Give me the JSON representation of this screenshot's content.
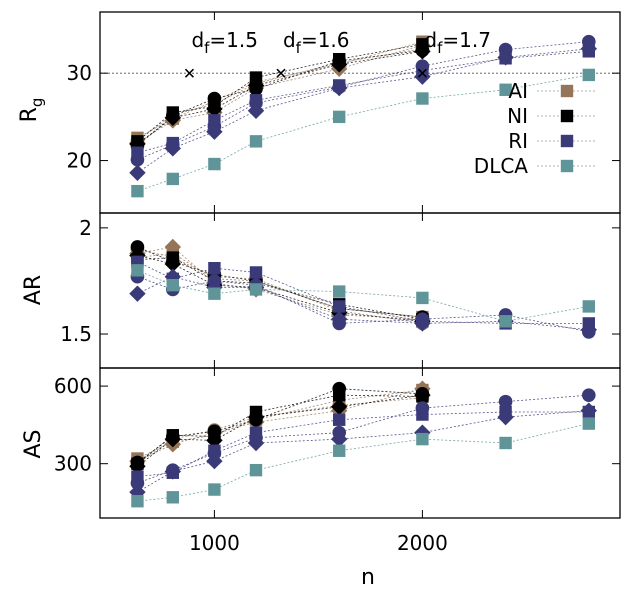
{
  "chart_data": {
    "type": "scatter",
    "xlabel": "n",
    "xticks": [
      1000,
      2000
    ],
    "xlim": [
      450,
      2950
    ],
    "colors": {
      "AI": "#957558",
      "NI": "#000000",
      "RI": "#3a3a78",
      "DLCA": "#5f9598"
    },
    "legend_position": "top-right",
    "panels": [
      {
        "ylabel_main": "R",
        "ylabel_sub": "g",
        "yticks": [
          20,
          30
        ],
        "ylim": [
          14,
          37
        ],
        "reference_y": 30,
        "annotations": [
          {
            "x": 880,
            "y": 30,
            "label_main": "d",
            "label_sub": "f",
            "label_value": "=1.5"
          },
          {
            "x": 1320,
            "y": 30,
            "label_main": "d",
            "label_sub": "f",
            "label_value": "=1.6"
          },
          {
            "x": 2000,
            "y": 30,
            "label_main": "d",
            "label_sub": "f",
            "label_value": "=1.7"
          }
        ],
        "legend": [
          "AI",
          "NI",
          "RI",
          "DLCA"
        ],
        "series": [
          {
            "name": "AI",
            "marker": "square",
            "x": [
              630,
              800,
              1000,
              1200,
              1600,
              2000
            ],
            "values": [
              22.6,
              24.8,
              26.8,
              29.0,
              31.0,
              33.6
            ]
          },
          {
            "name": "AI",
            "marker": "diamond",
            "x": [
              630,
              800,
              1000,
              1200,
              1600,
              2000
            ],
            "values": [
              22.0,
              24.6,
              25.5,
              28.3,
              30.5,
              33.2
            ]
          },
          {
            "name": "AI",
            "marker": "circle",
            "x": [
              630,
              800,
              1000,
              1200,
              1600,
              2000
            ],
            "values": [
              22.3,
              25.2,
              26.5,
              28.8,
              31.2,
              32.8
            ]
          },
          {
            "name": "NI",
            "marker": "square",
            "x": [
              630,
              800,
              1000,
              1200,
              1600,
              2000
            ],
            "values": [
              22.2,
              25.5,
              26.2,
              29.5,
              31.6,
              33.3
            ]
          },
          {
            "name": "NI",
            "marker": "diamond",
            "x": [
              630,
              800,
              1000,
              1200,
              1600,
              2000
            ],
            "values": [
              21.9,
              24.9,
              25.9,
              28.6,
              31.0,
              32.5
            ]
          },
          {
            "name": "NI",
            "marker": "circle",
            "x": [
              630,
              800,
              1000,
              1200,
              1600,
              2000
            ],
            "values": [
              21.7,
              25.1,
              27.1,
              28.2,
              31.4,
              32.6
            ]
          },
          {
            "name": "RI",
            "marker": "square",
            "x": [
              630,
              800,
              1000,
              1200,
              1600,
              2000,
              2400,
              2800
            ],
            "values": [
              20.9,
              22.0,
              24.6,
              26.9,
              28.6,
              30.3,
              31.7,
              32.5
            ]
          },
          {
            "name": "RI",
            "marker": "diamond",
            "x": [
              630,
              800,
              1000,
              1200,
              1600,
              2000,
              2400,
              2800
            ],
            "values": [
              18.6,
              21.4,
              23.3,
              25.7,
              28.3,
              29.6,
              31.8,
              32.8
            ]
          },
          {
            "name": "RI",
            "marker": "circle",
            "x": [
              630,
              800,
              1000,
              1200,
              1600,
              2000,
              2400,
              2800
            ],
            "values": [
              20.1,
              21.8,
              23.9,
              26.6,
              28.4,
              30.8,
              32.7,
              33.6
            ]
          },
          {
            "name": "DLCA",
            "marker": "square",
            "x": [
              630,
              800,
              1000,
              1200,
              1600,
              2000,
              2400,
              2800
            ],
            "values": [
              16.5,
              17.9,
              19.6,
              22.2,
              25.0,
              27.1,
              28.1,
              29.8
            ]
          }
        ]
      },
      {
        "ylabel_main": "AR",
        "yticks": [
          1.5,
          2
        ],
        "ylim": [
          1.34,
          2.07
        ],
        "series": [
          {
            "name": "AI",
            "marker": "square",
            "x": [
              630,
              800,
              1000,
              1200,
              1600,
              2000
            ],
            "values": [
              1.86,
              1.88,
              1.76,
              1.75,
              1.62,
              1.58
            ]
          },
          {
            "name": "AI",
            "marker": "diamond",
            "x": [
              630,
              800,
              1000,
              1200,
              1600,
              2000
            ],
            "values": [
              1.88,
              1.91,
              1.74,
              1.71,
              1.59,
              1.57
            ]
          },
          {
            "name": "AI",
            "marker": "circle",
            "x": [
              630,
              800,
              1000,
              1200,
              1600,
              2000
            ],
            "values": [
              1.9,
              1.86,
              1.77,
              1.76,
              1.61,
              1.55
            ]
          },
          {
            "name": "NI",
            "marker": "square",
            "x": [
              630,
              800,
              1000,
              1200,
              1600,
              2000
            ],
            "values": [
              1.85,
              1.86,
              1.75,
              1.74,
              1.64,
              1.57
            ]
          },
          {
            "name": "NI",
            "marker": "diamond",
            "x": [
              630,
              800,
              1000,
              1200,
              1600,
              2000
            ],
            "values": [
              1.87,
              1.83,
              1.73,
              1.72,
              1.6,
              1.56
            ]
          },
          {
            "name": "NI",
            "marker": "circle",
            "x": [
              630,
              800,
              1000,
              1200,
              1600,
              2000
            ],
            "values": [
              1.91,
              1.84,
              1.78,
              1.75,
              1.62,
              1.58
            ]
          },
          {
            "name": "RI",
            "marker": "square",
            "x": [
              630,
              800,
              1000,
              1200,
              1600,
              2000,
              2400,
              2800
            ],
            "values": [
              1.84,
              1.76,
              1.81,
              1.79,
              1.63,
              1.56,
              1.55,
              1.55
            ]
          },
          {
            "name": "RI",
            "marker": "diamond",
            "x": [
              630,
              800,
              1000,
              1200,
              1600,
              2000,
              2400,
              2800
            ],
            "values": [
              1.69,
              1.77,
              1.72,
              1.72,
              1.57,
              1.55,
              1.56,
              1.52
            ]
          },
          {
            "name": "RI",
            "marker": "circle",
            "x": [
              630,
              800,
              1000,
              1200,
              1600,
              2000,
              2400,
              2800
            ],
            "values": [
              1.77,
              1.71,
              1.75,
              1.73,
              1.55,
              1.57,
              1.59,
              1.51
            ]
          },
          {
            "name": "DLCA",
            "marker": "square",
            "x": [
              630,
              800,
              1000,
              1200,
              1600,
              2000,
              2400,
              2800
            ],
            "values": [
              1.8,
              1.73,
              1.69,
              1.71,
              1.7,
              1.67,
              1.56,
              1.63
            ]
          }
        ]
      },
      {
        "ylabel_main": "AS",
        "yticks": [
          300,
          600
        ],
        "ylim": [
          90,
          670
        ],
        "series": [
          {
            "name": "AI",
            "marker": "square",
            "x": [
              630,
              800,
              1000,
              1200,
              1600,
              2000
            ],
            "values": [
              320,
              385,
              410,
              470,
              545,
              585
            ]
          },
          {
            "name": "AI",
            "marker": "diamond",
            "x": [
              630,
              800,
              1000,
              1200,
              1600,
              2000
            ],
            "values": [
              310,
              375,
              420,
              460,
              505,
              590
            ]
          },
          {
            "name": "AI",
            "marker": "circle",
            "x": [
              630,
              800,
              1000,
              1200,
              1600,
              2000
            ],
            "values": [
              300,
              395,
              430,
              480,
              525,
              555
            ]
          },
          {
            "name": "NI",
            "marker": "square",
            "x": [
              630,
              800,
              1000,
              1200,
              1600,
              2000
            ],
            "values": [
              300,
              410,
              405,
              500,
              565,
              560
            ]
          },
          {
            "name": "NI",
            "marker": "diamond",
            "x": [
              630,
              800,
              1000,
              1200,
              1600,
              2000
            ],
            "values": [
              290,
              395,
              390,
              480,
              520,
              565
            ]
          },
          {
            "name": "NI",
            "marker": "circle",
            "x": [
              630,
              800,
              1000,
              1200,
              1600,
              2000
            ],
            "values": [
              305,
              405,
              425,
              470,
              590,
              570
            ]
          },
          {
            "name": "RI",
            "marker": "square",
            "x": [
              630,
              800,
              1000,
              1200,
              1600,
              2000,
              2400,
              2800
            ],
            "values": [
              250,
              265,
              350,
              420,
              470,
              490,
              500,
              500
            ]
          },
          {
            "name": "RI",
            "marker": "diamond",
            "x": [
              630,
              800,
              1000,
              1200,
              1600,
              2000,
              2400,
              2800
            ],
            "values": [
              190,
              270,
              310,
              380,
              395,
              420,
              480,
              505
            ]
          },
          {
            "name": "RI",
            "marker": "circle",
            "x": [
              630,
              800,
              1000,
              1200,
              1600,
              2000,
              2400,
              2800
            ],
            "values": [
              225,
              275,
              340,
              400,
              420,
              515,
              540,
              565
            ]
          },
          {
            "name": "DLCA",
            "marker": "square",
            "x": [
              630,
              800,
              1000,
              1200,
              1600,
              2000,
              2400,
              2800
            ],
            "values": [
              155,
              170,
              200,
              275,
              350,
              395,
              380,
              455
            ]
          }
        ]
      }
    ]
  }
}
